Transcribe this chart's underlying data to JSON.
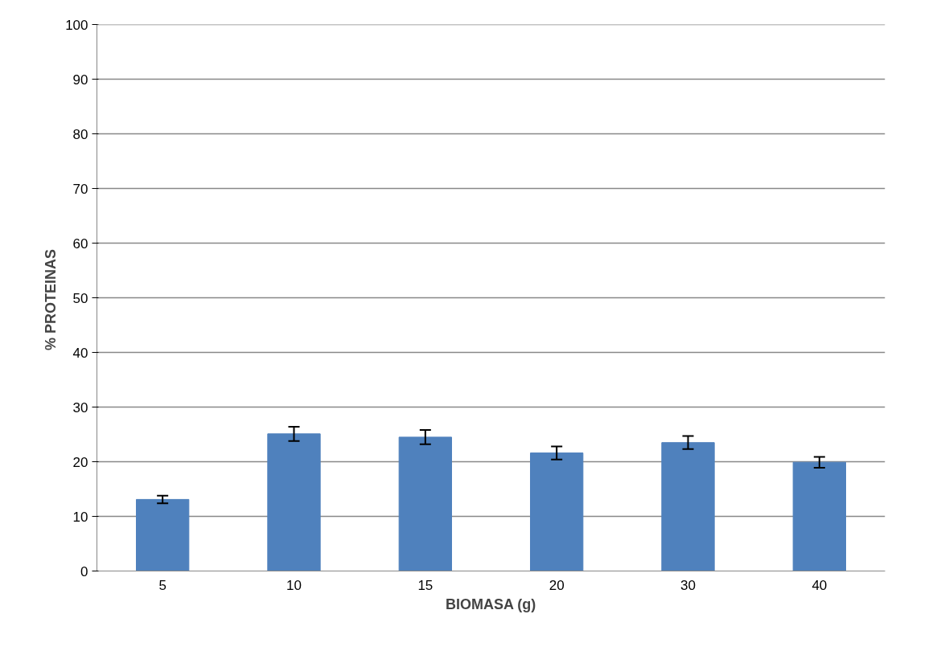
{
  "chart_data": {
    "type": "bar",
    "xlabel": "BIOMASA (g)",
    "ylabel": "%  PROTEINAS",
    "categories": [
      "5",
      "10",
      "15",
      "20",
      "30",
      "40"
    ],
    "values": [
      13.1,
      25.1,
      24.5,
      21.6,
      23.5,
      19.9
    ],
    "errors": [
      0.7,
      1.3,
      1.3,
      1.2,
      1.2,
      1.0
    ],
    "color": "#4f81bd",
    "ylim": [
      0,
      100
    ],
    "yticks": [
      0,
      10,
      20,
      30,
      40,
      50,
      60,
      70,
      80,
      90,
      100
    ],
    "grid": "y"
  }
}
